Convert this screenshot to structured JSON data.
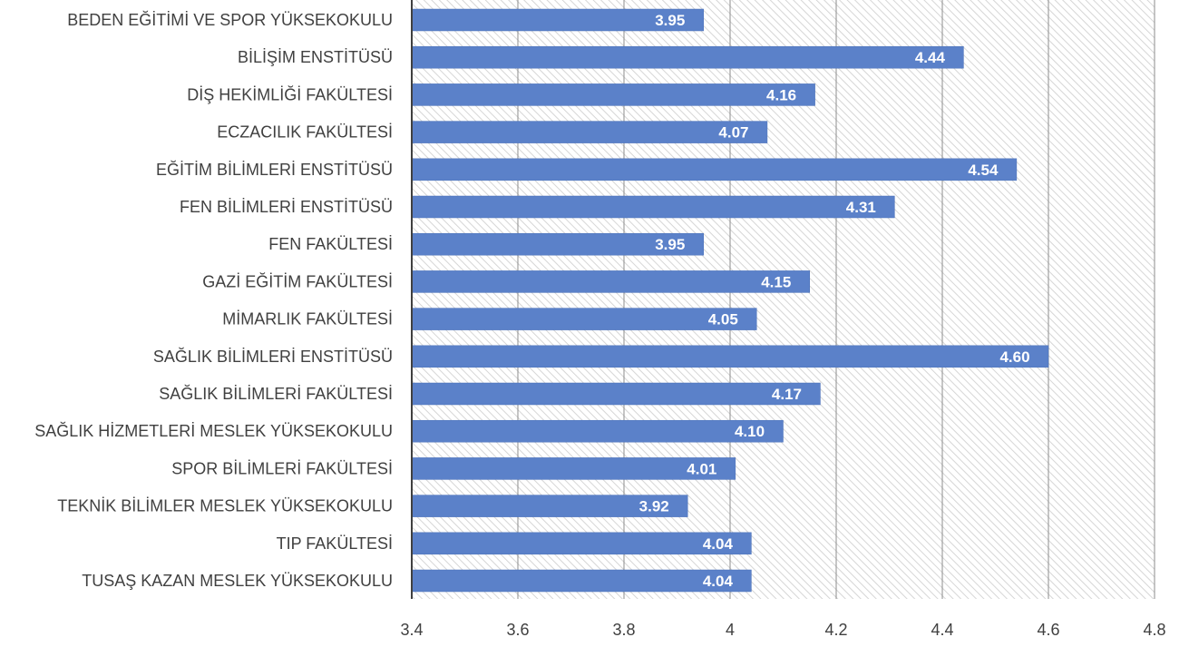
{
  "chart_data": {
    "type": "bar",
    "orientation": "horizontal",
    "categories": [
      "BEDEN EĞİTİMİ VE SPOR YÜKSEKOKULU",
      "BİLİŞİM ENSTİTÜSÜ",
      "DİŞ HEKİMLİĞİ FAKÜLTESİ",
      "ECZACILIK FAKÜLTESİ",
      "EĞİTİM BİLİMLERİ ENSTİTÜSÜ",
      "FEN BİLİMLERİ ENSTİTÜSÜ",
      "FEN FAKÜLTESİ",
      "GAZİ EĞİTİM FAKÜLTESİ",
      "MİMARLIK FAKÜLTESİ",
      "SAĞLIK BİLİMLERİ ENSTİTÜSÜ",
      "SAĞLIK BİLİMLERİ FAKÜLTESİ",
      "SAĞLIK HİZMETLERİ MESLEK YÜKSEKOKULU",
      "SPOR BİLİMLERİ FAKÜLTESİ",
      "TEKNİK BİLİMLER MESLEK YÜKSEKOKULU",
      "TIP FAKÜLTESİ",
      "TUSAŞ KAZAN MESLEK YÜKSEKOKULU"
    ],
    "values": [
      3.95,
      4.44,
      4.16,
      4.07,
      4.54,
      4.31,
      3.95,
      4.15,
      4.05,
      4.6,
      4.17,
      4.1,
      4.01,
      3.92,
      4.04,
      4.04
    ],
    "data_labels": [
      "3.95",
      "4.44",
      "4.16",
      "4.07",
      "4.54",
      "4.31",
      "3.95",
      "4.15",
      "4.05",
      "4.60",
      "4.17",
      "4.10",
      "4.01",
      "3.92",
      "4.04",
      "4.04"
    ],
    "xlim": [
      3.4,
      4.8
    ],
    "x_ticks": [
      3.4,
      3.6,
      3.8,
      4.0,
      4.2,
      4.4,
      4.6,
      4.8
    ],
    "x_tick_labels": [
      "3.4",
      "3.6",
      "3.8",
      "4",
      "4.2",
      "4.4",
      "4.6",
      "4.8"
    ],
    "title": "",
    "xlabel": "",
    "ylabel": "",
    "grid": true,
    "legend": "none",
    "colors": {
      "bar": "#5b81c9",
      "bar_edge": "#4a70b8",
      "grid": "#8c8c8c",
      "hatch": "#d6d6d6",
      "axis": "#404040",
      "text": "#404040",
      "data_label": "#ffffff"
    }
  }
}
